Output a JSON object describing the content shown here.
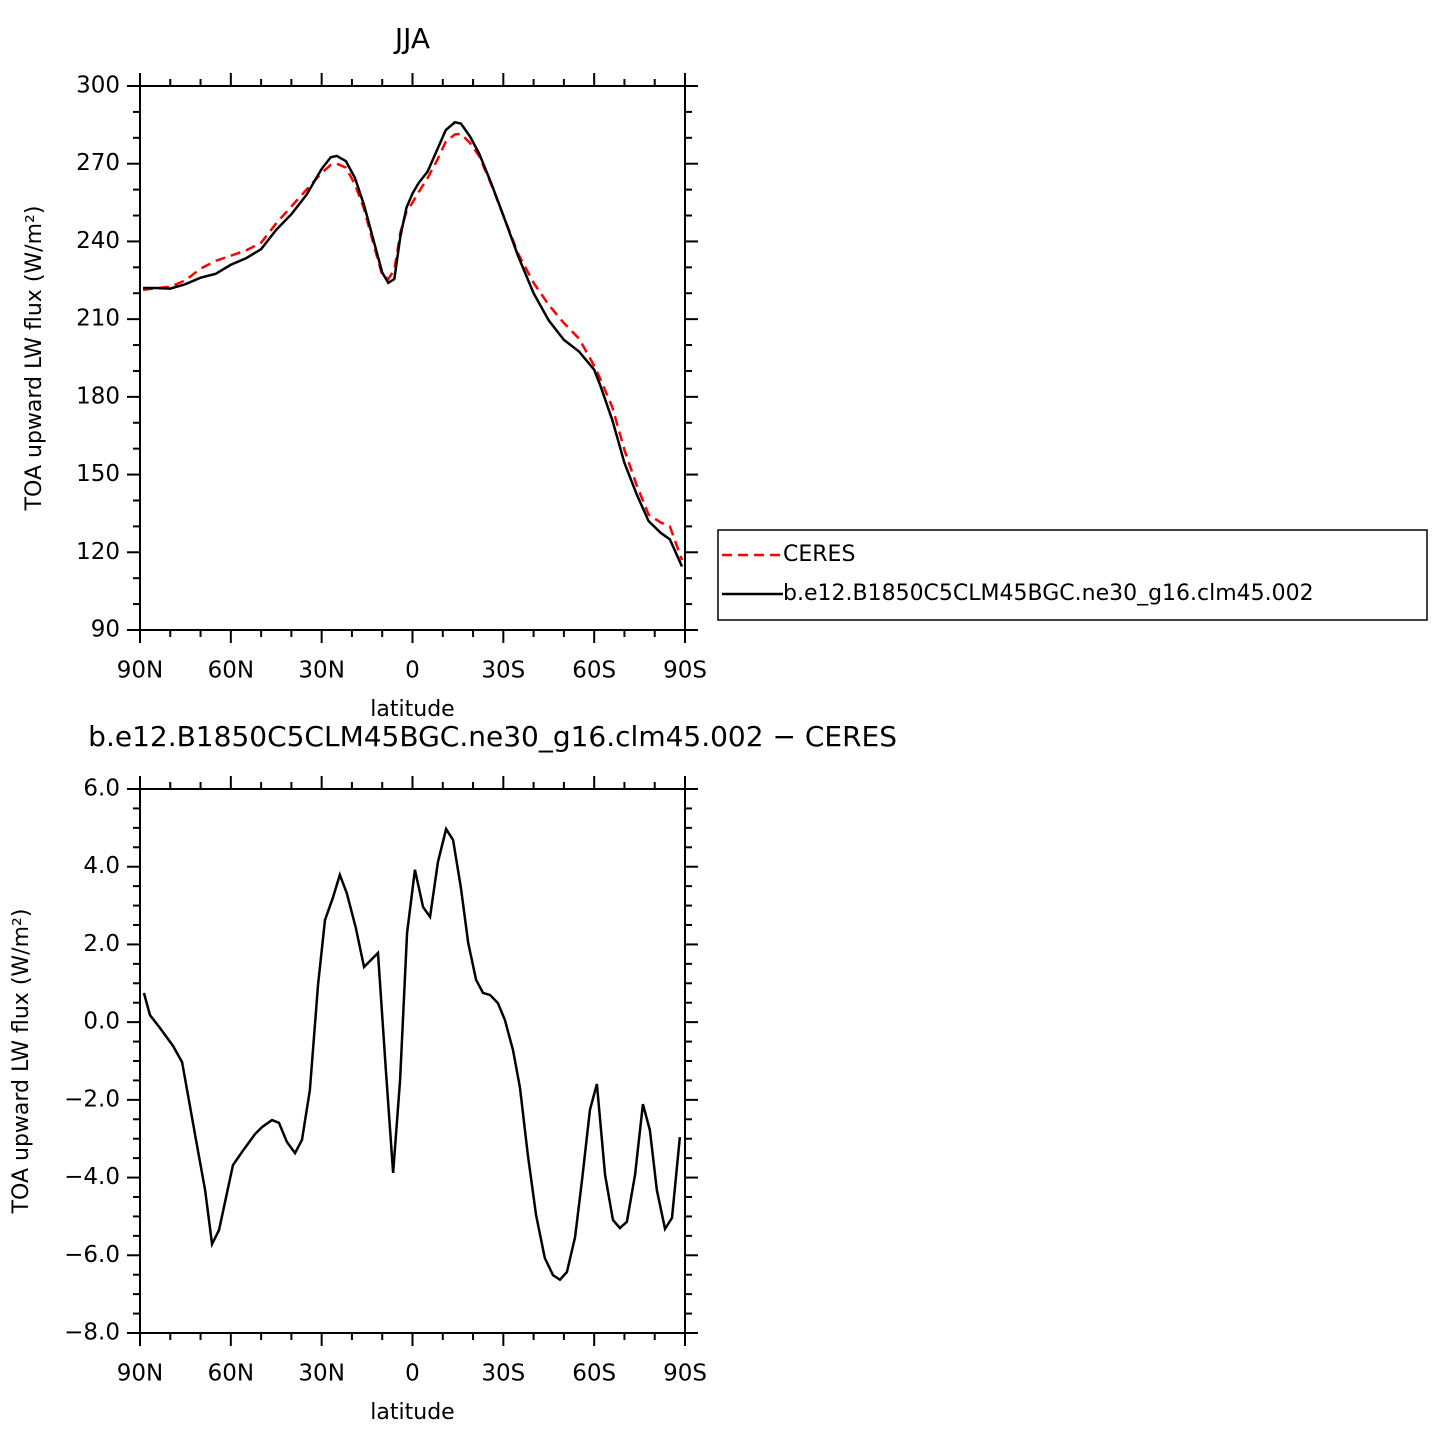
{
  "chart_data": [
    {
      "type": "line",
      "title": "JJA",
      "x_label": "latitude",
      "y_label": "TOA upward LW flux (W/m²)",
      "xlim": [
        90,
        -90
      ],
      "ylim": [
        90,
        300
      ],
      "xticks": [
        {
          "value": 90,
          "label": "90N"
        },
        {
          "value": 60,
          "label": "60N"
        },
        {
          "value": 30,
          "label": "30N"
        },
        0,
        {
          "value": -30,
          "label": "30S"
        },
        {
          "value": -60,
          "label": "60S"
        },
        {
          "value": -90,
          "label": "90S"
        }
      ],
      "minor_xticks": [
        80,
        70,
        50,
        40,
        20,
        10,
        -10,
        -20,
        -40,
        -50,
        -70,
        -80
      ],
      "yticks": [
        90,
        120,
        150,
        180,
        210,
        240,
        270,
        300
      ],
      "minor_yticks": [
        100,
        110,
        130,
        140,
        160,
        170,
        190,
        200,
        220,
        230,
        250,
        260,
        280,
        290
      ],
      "legend": "right",
      "x": [
        89,
        85,
        80,
        75,
        70,
        65,
        60,
        55,
        50,
        45,
        40,
        35,
        30,
        27,
        25,
        22,
        19,
        16,
        13,
        10,
        8,
        6,
        4,
        2,
        0,
        -2,
        -5,
        -8,
        -11,
        -14,
        -16,
        -19,
        -22,
        -26,
        -30,
        -35,
        -40,
        -45,
        -50,
        -55,
        -60,
        -62,
        -66,
        -70,
        -74,
        -78,
        -82,
        -85,
        -89
      ],
      "series": [
        {
          "name": "CERES",
          "color": "#ff0000",
          "dash": "dashed",
          "values": [
            221.3,
            221.9,
            222.5,
            225,
            229.5,
            232.5,
            234.5,
            236.5,
            239.5,
            247,
            253.5,
            260,
            266.5,
            269.5,
            270,
            268.5,
            262,
            252.5,
            239.5,
            227,
            225.5,
            229,
            243.5,
            251.5,
            255,
            259,
            264.5,
            271,
            278.5,
            281.3,
            281.5,
            278,
            273,
            262,
            250,
            235,
            224,
            215.5,
            208.5,
            202.5,
            192,
            187,
            176,
            159.5,
            146,
            134.5,
            131.5,
            130,
            117
          ]
        },
        {
          "name": "b.e12.B1850C5CLM45BGC.ne30_g16.clm45.002",
          "color": "#000000",
          "values": [
            222,
            222,
            221.8,
            223.5,
            226,
            227.5,
            231,
            233.5,
            237,
            244.5,
            250.5,
            258,
            268,
            272.5,
            273,
            271,
            264.5,
            254,
            241,
            228,
            224,
            225.5,
            242,
            253,
            258.5,
            262.5,
            267,
            275,
            283,
            286,
            285.5,
            280.5,
            274,
            262.5,
            250,
            234,
            220,
            209.5,
            202,
            197.5,
            190.5,
            184.5,
            171,
            154.5,
            142.5,
            132,
            127.5,
            125,
            114.5
          ]
        }
      ]
    },
    {
      "type": "line",
      "title": "b.e12.B1850C5CLM45BGC.ne30_g16.clm45.002 − CERES",
      "x_label": "latitude",
      "y_label": "TOA upward LW flux (W/m²)",
      "xlim": [
        90,
        -90
      ],
      "ylim": [
        -8,
        6
      ],
      "xticks": [
        {
          "value": 90,
          "label": "90N"
        },
        {
          "value": 60,
          "label": "60N"
        },
        {
          "value": 30,
          "label": "30N"
        },
        0,
        {
          "value": -30,
          "label": "30S"
        },
        {
          "value": -60,
          "label": "60S"
        },
        {
          "value": -90,
          "label": "90S"
        }
      ],
      "minor_xticks": [
        80,
        70,
        50,
        40,
        20,
        10,
        -10,
        -20,
        -40,
        -50,
        -70,
        -80
      ],
      "yticks": [
        {
          "value": -8,
          "label": "−8.0"
        },
        {
          "value": -6,
          "label": "−6.0"
        },
        {
          "value": -4,
          "label": "−4.0"
        },
        {
          "value": -2,
          "label": "−2.0"
        },
        {
          "value": 0,
          "label": "0.0"
        },
        {
          "value": 2,
          "label": "2.0"
        },
        {
          "value": 4,
          "label": "4.0"
        },
        {
          "value": 6,
          "label": "6.0"
        }
      ],
      "minor_yticks": [
        -7.5,
        -7,
        -6.5,
        -5.5,
        -5,
        -4.5,
        -3.5,
        -3,
        -2.5,
        -1.5,
        -1,
        -0.5,
        0.5,
        1,
        1.5,
        2.5,
        3,
        3.5,
        4.5,
        5,
        5.5
      ],
      "x": [
        88.7,
        86.7,
        83.4,
        79.1,
        76.1,
        71.2,
        68.5,
        66.2,
        63.9,
        59.3,
        56.3,
        52,
        49.7,
        46.4,
        44.1,
        41.5,
        38.8,
        36.5,
        33.9,
        31.2,
        28.9,
        26.3,
        24,
        21.7,
        18.7,
        16,
        11.4,
        8.8,
        6.4,
        4.1,
        1.8,
        -0.8,
        -3.5,
        -5.8,
        -8.4,
        -11.1,
        -13.4,
        -16,
        -18.4,
        -21,
        -23.3,
        -25.6,
        -28.2,
        -30.5,
        -33.2,
        -35.5,
        -38.1,
        -40.8,
        -43.7,
        -46.4,
        -48.7,
        -51,
        -53.7,
        -56,
        -58.6,
        -60.9,
        -63.6,
        -66.2,
        -68.5,
        -70.8,
        -73.5,
        -76.1,
        -78.4,
        -80.7,
        -83.4,
        -85.7,
        -88.3
      ],
      "series": [
        {
          "color": "#000000",
          "values": [
            0.75,
            0.18,
            -0.15,
            -0.61,
            -1.03,
            -3.16,
            -4.32,
            -5.71,
            -5.35,
            -3.68,
            -3.34,
            -2.88,
            -2.7,
            -2.52,
            -2.59,
            -3.08,
            -3.37,
            -3.03,
            -1.75,
            0.96,
            2.63,
            3.2,
            3.79,
            3.32,
            2.42,
            1.42,
            1.78,
            -1.23,
            -3.88,
            -1.49,
            2.29,
            3.92,
            2.96,
            2.71,
            4.12,
            4.97,
            4.69,
            3.45,
            2.04,
            1.09,
            0.75,
            0.7,
            0.49,
            0.06,
            -0.72,
            -1.69,
            -3.42,
            -4.96,
            -6.07,
            -6.51,
            -6.63,
            -6.43,
            -5.53,
            -4.06,
            -2.26,
            -1.59,
            -3.93,
            -5.09,
            -5.3,
            -5.14,
            -3.93,
            -2.11,
            -2.78,
            -4.32,
            -5.32,
            -5.04,
            -2.96
          ]
        }
      ]
    }
  ]
}
